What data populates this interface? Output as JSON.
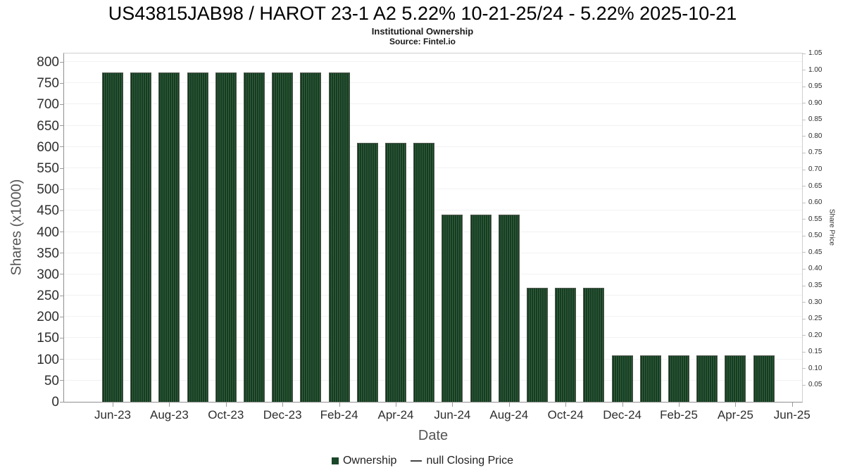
{
  "chart_data": {
    "type": "bar",
    "title": "US43815JAB98 / HAROT 23-1 A2 5.22% 10-21-25/24 - 5.22% 2025-10-21",
    "subtitle": "Institutional Ownership",
    "source": "Source: Fintel.io",
    "xlabel": "Date",
    "ylabel": "Shares (x1000)",
    "ylabel_right": "Share Price",
    "categories": [
      "Jun-23",
      "Jul-23",
      "Aug-23",
      "Sep-23",
      "Oct-23",
      "Nov-23",
      "Dec-23",
      "Jan-24",
      "Feb-24",
      "Mar-24",
      "Apr-24",
      "May-24",
      "Jun-24",
      "Jul-24",
      "Aug-24",
      "Sep-24",
      "Oct-24",
      "Nov-24",
      "Dec-24",
      "Jan-25",
      "Feb-25",
      "Mar-25",
      "Apr-25",
      "May-25"
    ],
    "series": [
      {
        "name": "Ownership",
        "type": "bar",
        "color": "#1a4728",
        "values": [
          775,
          775,
          775,
          775,
          775,
          775,
          775,
          775,
          775,
          610,
          610,
          610,
          441,
          441,
          441,
          268,
          268,
          268,
          110,
          110,
          110,
          110,
          110,
          110
        ]
      },
      {
        "name": "null Closing Price",
        "type": "line",
        "color": "#555555",
        "values": []
      }
    ],
    "x_tick_labels": [
      "Jun-23",
      "Aug-23",
      "Oct-23",
      "Dec-23",
      "Feb-24",
      "Apr-24",
      "Jun-24",
      "Aug-24",
      "Oct-24",
      "Dec-24",
      "Feb-25",
      "Apr-25",
      "Jun-25"
    ],
    "y_left_axis": {
      "min": 0,
      "max": 820,
      "ticks": [
        0,
        50,
        100,
        150,
        200,
        250,
        300,
        350,
        400,
        450,
        500,
        550,
        600,
        650,
        700,
        750,
        800
      ]
    },
    "y_right_axis": {
      "min": 0,
      "max": 1.05,
      "ticks": [
        0.05,
        0.1,
        0.15,
        0.2,
        0.25,
        0.3,
        0.35,
        0.4,
        0.45,
        0.5,
        0.55,
        0.6,
        0.65,
        0.7,
        0.75,
        0.8,
        0.85,
        0.9,
        0.95,
        1.0,
        1.05
      ]
    },
    "legend": [
      {
        "label": "Ownership",
        "marker": "square",
        "color": "#1a4728"
      },
      {
        "label": "null Closing Price",
        "marker": "line",
        "color": "#444444"
      }
    ],
    "legend_position": "bottom",
    "grid": "horizontal-faint"
  }
}
